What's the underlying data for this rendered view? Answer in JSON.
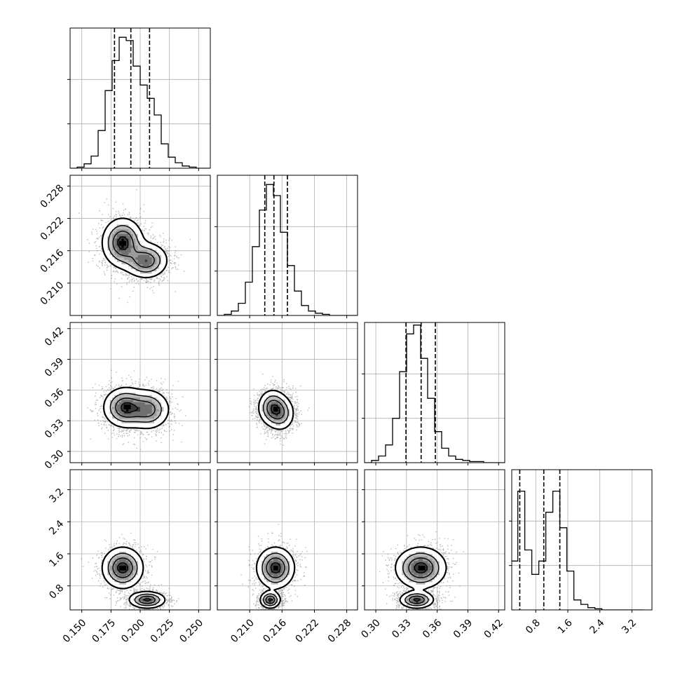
{
  "colors": {
    "ink": "#000000",
    "grid": "#b0b0b0",
    "points": "#7f7f7f",
    "density_levels": [
      "#d9d9d9",
      "#bdbdbd",
      "#9b9b9b",
      "#707070",
      "#3a3a3a",
      "#000000"
    ]
  },
  "chart_data": {
    "type": "corner",
    "grid": true,
    "quantile_lines": "dashed",
    "params": [
      {
        "range": [
          0.14,
          0.26
        ],
        "ticks": [
          "0.150",
          "0.175",
          "0.200",
          "0.225",
          "0.250"
        ],
        "quantiles": [
          0.178,
          0.192,
          0.208
        ],
        "hist": {
          "edges": [
            0.14,
            0.146,
            0.152,
            0.158,
            0.164,
            0.17,
            0.176,
            0.182,
            0.188,
            0.194,
            0.2,
            0.206,
            0.212,
            0.218,
            0.224,
            0.23,
            0.236,
            0.242,
            0.248,
            0.254,
            0.26
          ],
          "counts": [
            0,
            1,
            4,
            11,
            34,
            70,
            97,
            118,
            115,
            92,
            75,
            63,
            48,
            22,
            10,
            5,
            2,
            1,
            0,
            0
          ]
        },
        "hist_ylim": [
          0,
          120
        ]
      },
      {
        "range": [
          0.204,
          0.23
        ],
        "ticks": [
          "0.210",
          "0.216",
          "0.222",
          "0.228"
        ],
        "quantiles": [
          0.2128,
          0.2145,
          0.217
        ],
        "hist": {
          "edges": [
            0.204,
            0.2053,
            0.2066,
            0.2079,
            0.2092,
            0.2105,
            0.2118,
            0.2131,
            0.2144,
            0.2157,
            0.217,
            0.2183,
            0.2196,
            0.2209,
            0.2222,
            0.2235,
            0.2248,
            0.2261,
            0.2274,
            0.2287,
            0.23
          ],
          "counts": [
            0,
            1,
            4,
            11,
            30,
            62,
            95,
            118,
            108,
            75,
            45,
            22,
            9,
            4,
            2,
            1,
            0,
            0,
            0,
            0
          ]
        },
        "hist_ylim": [
          0,
          120
        ]
      },
      {
        "range": [
          0.289,
          0.426
        ],
        "ticks": [
          "0.30",
          "0.33",
          "0.36",
          "0.39",
          "0.42"
        ],
        "quantiles": [
          0.3295,
          0.3443,
          0.3582
        ],
        "hist": {
          "edges": [
            0.289,
            0.29585,
            0.3027,
            0.30955,
            0.3164,
            0.32325,
            0.3301,
            0.33695,
            0.3438,
            0.35065,
            0.3575,
            0.36435,
            0.3712,
            0.37805,
            0.3849,
            0.39175,
            0.3986,
            0.40545,
            0.4123,
            0.41915,
            0.426
          ],
          "counts": [
            0,
            2,
            6,
            16,
            40,
            82,
            116,
            124,
            94,
            58,
            28,
            13,
            6,
            3,
            2,
            1,
            1,
            0,
            0,
            0
          ]
        },
        "hist_ylim": [
          0,
          120
        ]
      },
      {
        "range": [
          0.2,
          3.7
        ],
        "ticks": [
          "0.8",
          "1.6",
          "2.4",
          "3.2"
        ],
        "quantiles": [
          0.4,
          1.0,
          1.4
        ],
        "hist": {
          "edges": [
            0.0,
            0.175,
            0.35,
            0.525,
            0.7,
            0.875,
            1.05,
            1.225,
            1.4,
            1.575,
            1.75,
            1.925,
            2.1,
            2.275,
            2.45,
            2.625,
            2.8,
            2.975,
            3.15,
            3.325,
            3.5
          ],
          "counts": [
            0,
            44,
            107,
            54,
            32,
            44,
            88,
            107,
            74,
            35,
            9,
            5,
            2,
            1,
            0,
            0,
            0,
            0,
            0,
            0
          ]
        },
        "hist_ylim": [
          0,
          120
        ]
      }
    ],
    "pairs": [
      {
        "row": 1,
        "col": 0,
        "peaks": [
          {
            "x": 0.185,
            "y": 0.2175,
            "sx": 0.0085,
            "sy": 0.0022,
            "w": 1.0
          },
          {
            "x": 0.205,
            "y": 0.2142,
            "sx": 0.009,
            "sy": 0.0016,
            "w": 0.85
          }
        ]
      },
      {
        "row": 2,
        "col": 0,
        "peaks": [
          {
            "x": 0.187,
            "y": 0.343,
            "sx": 0.009,
            "sy": 0.0095,
            "w": 1.0
          },
          {
            "x": 0.207,
            "y": 0.341,
            "sx": 0.009,
            "sy": 0.0095,
            "w": 0.8
          }
        ]
      },
      {
        "row": 2,
        "col": 1,
        "peaks": [
          {
            "x": 0.2142,
            "y": 0.343,
            "sx": 0.0013,
            "sy": 0.0085,
            "w": 1.0
          },
          {
            "x": 0.2158,
            "y": 0.337,
            "sx": 0.0013,
            "sy": 0.0085,
            "w": 0.7
          }
        ]
      },
      {
        "row": 3,
        "col": 0,
        "peaks": [
          {
            "x": 0.185,
            "y": 1.25,
            "sx": 0.0085,
            "sy": 0.25,
            "w": 1.0
          },
          {
            "x": 0.206,
            "y": 0.45,
            "sx": 0.0075,
            "sy": 0.1,
            "w": 0.95
          }
        ]
      },
      {
        "row": 3,
        "col": 1,
        "peaks": [
          {
            "x": 0.2148,
            "y": 1.25,
            "sx": 0.0017,
            "sy": 0.25,
            "w": 1.0
          },
          {
            "x": 0.2138,
            "y": 0.45,
            "sx": 0.0009,
            "sy": 0.1,
            "w": 0.95
          }
        ]
      },
      {
        "row": 3,
        "col": 2,
        "peaks": [
          {
            "x": 0.344,
            "y": 1.25,
            "sx": 0.012,
            "sy": 0.25,
            "w": 1.0
          },
          {
            "x": 0.34,
            "y": 0.45,
            "sx": 0.008,
            "sy": 0.1,
            "w": 0.95
          }
        ]
      }
    ]
  }
}
